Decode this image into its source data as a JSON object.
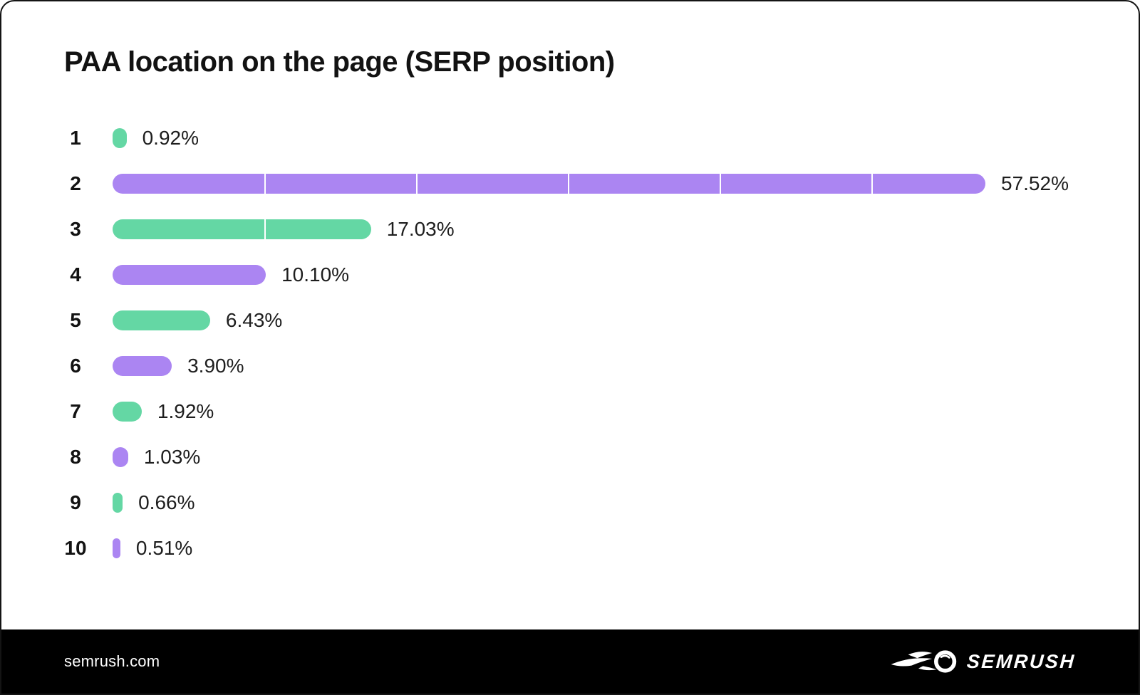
{
  "card": {
    "title": "PAA location on the page (SERP position)"
  },
  "chart_data": {
    "type": "bar",
    "orientation": "horizontal",
    "title": "PAA location on the page (SERP position)",
    "xlabel": "",
    "ylabel": "SERP position",
    "categories": [
      "1",
      "2",
      "3",
      "4",
      "5",
      "6",
      "7",
      "8",
      "9",
      "10"
    ],
    "values": [
      0.92,
      57.52,
      17.03,
      10.1,
      6.43,
      3.9,
      1.92,
      1.03,
      0.66,
      0.51
    ],
    "value_labels": [
      "0.92%",
      "57.52%",
      "17.03%",
      "10.10%",
      "6.43%",
      "3.90%",
      "1.92%",
      "1.03%",
      "0.66%",
      "0.51%"
    ],
    "bar_color_keys": [
      "green",
      "purple",
      "green",
      "purple",
      "green",
      "purple",
      "green",
      "purple",
      "green",
      "purple"
    ],
    "palette": {
      "green": "#64d7a4",
      "purple": "#ab85f2"
    },
    "segment_divider_interval_pct": 10,
    "segment_divider_color": "#ffffff",
    "xmax": 57.52,
    "grid": false,
    "legend": false
  },
  "footer": {
    "site": "semrush.com",
    "brand": "semrush",
    "background": "#000000"
  }
}
